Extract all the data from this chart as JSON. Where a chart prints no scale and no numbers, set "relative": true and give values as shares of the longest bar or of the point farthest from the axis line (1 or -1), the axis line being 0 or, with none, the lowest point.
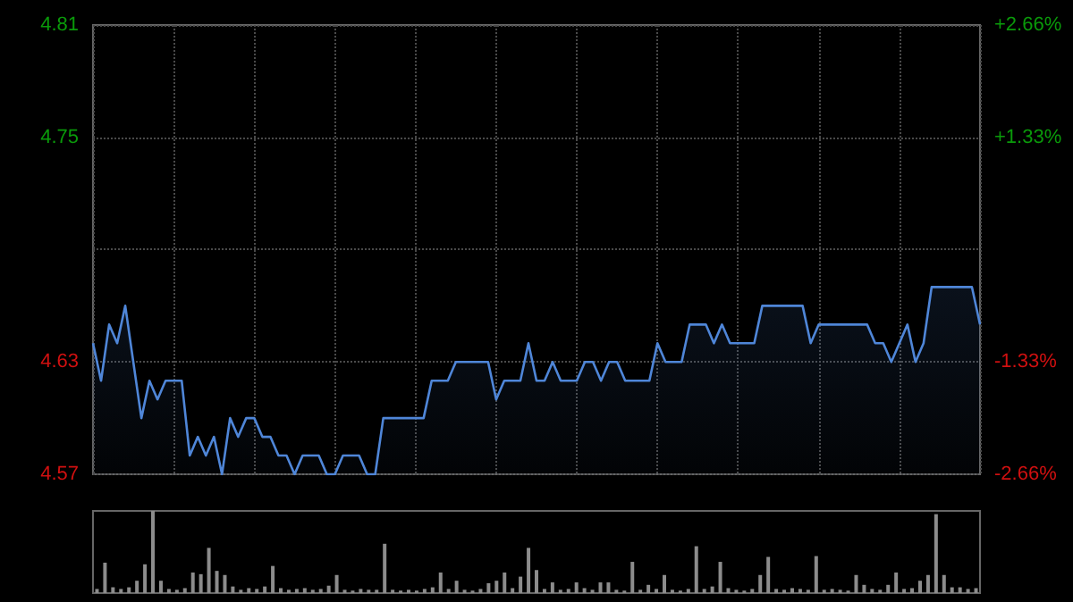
{
  "chart_data": [
    {
      "type": "area",
      "series": [
        {
          "color": "#4f86d8",
          "values": [
            4.64,
            4.62,
            4.65,
            4.64,
            4.66,
            4.63,
            4.6,
            4.62,
            4.61,
            4.62,
            4.62,
            4.62,
            4.58,
            4.59,
            4.58,
            4.59,
            4.57,
            4.6,
            4.59,
            4.6,
            4.6,
            4.59,
            4.59,
            4.58,
            4.58,
            4.57,
            4.58,
            4.58,
            4.58,
            4.57,
            4.57,
            4.58,
            4.58,
            4.58,
            4.57,
            4.57,
            4.6,
            4.6,
            4.6,
            4.6,
            4.6,
            4.6,
            4.62,
            4.62,
            4.62,
            4.63,
            4.63,
            4.63,
            4.63,
            4.63,
            4.61,
            4.62,
            4.62,
            4.62,
            4.64,
            4.62,
            4.62,
            4.63,
            4.62,
            4.62,
            4.62,
            4.63,
            4.63,
            4.62,
            4.63,
            4.63,
            4.62,
            4.62,
            4.62,
            4.62,
            4.64,
            4.63,
            4.63,
            4.63,
            4.65,
            4.65,
            4.65,
            4.64,
            4.65,
            4.64,
            4.64,
            4.64,
            4.64,
            4.66,
            4.66,
            4.66,
            4.66,
            4.66,
            4.66,
            4.64,
            4.65,
            4.65,
            4.65,
            4.65,
            4.65,
            4.65,
            4.65,
            4.64,
            4.64,
            4.63,
            4.64,
            4.65,
            4.63,
            4.64,
            4.67,
            4.67,
            4.67,
            4.67,
            4.67,
            4.67,
            4.65
          ]
        }
      ],
      "categories": [
        null,
        null,
        null,
        null,
        null,
        null,
        null,
        null,
        null,
        null,
        null,
        null,
        null,
        null,
        null,
        null,
        null,
        null,
        null,
        null,
        null,
        null,
        null,
        null,
        null,
        null,
        null,
        null,
        null,
        null,
        null,
        null,
        null,
        null,
        null,
        null,
        null,
        null,
        null,
        null,
        null,
        null,
        null,
        null,
        null,
        null,
        null,
        null,
        null,
        null,
        null,
        null,
        null,
        null,
        null,
        null,
        null,
        null,
        null,
        null,
        null,
        null,
        null,
        null,
        null,
        null,
        null,
        null,
        null,
        null,
        null,
        null,
        null,
        null,
        null,
        null,
        null,
        null,
        null,
        null,
        null,
        null,
        null,
        null,
        null,
        null,
        null,
        null,
        null,
        null,
        null,
        null,
        null,
        null,
        null,
        null,
        null,
        null,
        null,
        null,
        null,
        null,
        null,
        null,
        null,
        null,
        null,
        null,
        null,
        null,
        null
      ],
      "ylim": [
        4.57,
        4.81
      ],
      "yticks": [
        4.57,
        4.63,
        {
          "value": 4.69,
          "label": null
        },
        4.75,
        4.81
      ],
      "y2lim": [
        -2.66,
        2.66
      ],
      "y2ticks": [
        {
          "value": -2.66,
          "label": "-2.66%"
        },
        {
          "value": -1.33,
          "label": "-1.33%"
        },
        {
          "value": 0,
          "label": null
        },
        {
          "value": 1.33,
          "label": "+1.33%"
        },
        {
          "value": 2.66,
          "label": "+2.66%"
        }
      ],
      "tick_labels": "y",
      "grid": true,
      "line_style": "solid"
    },
    {
      "type": "bar",
      "relative": true,
      "tick_labels": false,
      "categories": [
        null,
        null,
        null,
        null,
        null,
        null,
        null,
        null,
        null,
        null,
        null,
        null,
        null,
        null,
        null,
        null,
        null,
        null,
        null,
        null,
        null,
        null,
        null,
        null,
        null,
        null,
        null,
        null,
        null,
        null,
        null,
        null,
        null,
        null,
        null,
        null,
        null,
        null,
        null,
        null,
        null,
        null,
        null,
        null,
        null,
        null,
        null,
        null,
        null,
        null,
        null,
        null,
        null,
        null,
        null,
        null,
        null,
        null,
        null,
        null,
        null,
        null,
        null,
        null,
        null,
        null,
        null,
        null,
        null,
        null,
        null,
        null,
        null,
        null,
        null,
        null,
        null,
        null,
        null,
        null,
        null,
        null,
        null,
        null,
        null,
        null,
        null,
        null,
        null,
        null,
        null,
        null,
        null,
        null,
        null,
        null,
        null,
        null,
        null,
        null,
        null,
        null,
        null,
        null,
        null,
        null,
        null,
        null,
        null,
        null,
        null
      ],
      "series": [
        {
          "color": "#8c8c8c",
          "values": [
            0.05,
            0.37,
            0.07,
            0.05,
            0.07,
            0.15,
            0.35,
            1,
            0.15,
            0.05,
            0.04,
            0.06,
            0.25,
            0.23,
            0.55,
            0.27,
            0.22,
            0.08,
            0.04,
            0.06,
            0.05,
            0.08,
            0.33,
            0.06,
            0.04,
            0.05,
            0.06,
            0.04,
            0.05,
            0.09,
            0.22,
            0.04,
            0.03,
            0.05,
            0.04,
            0.04,
            0.6,
            0.04,
            0.03,
            0.04,
            0.03,
            0.05,
            0.07,
            0.25,
            0.05,
            0.15,
            0.04,
            0.03,
            0.05,
            0.12,
            0.15,
            0.25,
            0.06,
            0.2,
            0.55,
            0.28,
            0.05,
            0.13,
            0.04,
            0.05,
            0.13,
            0.06,
            0.04,
            0.13,
            0.13,
            0.04,
            0.03,
            0.38,
            0.04,
            0.1,
            0.05,
            0.22,
            0.04,
            0.03,
            0.05,
            0.57,
            0.05,
            0.08,
            0.38,
            0.06,
            0.04,
            0.03,
            0.05,
            0.22,
            0.44,
            0.05,
            0.04,
            0.06,
            0.05,
            0.04,
            0.45,
            0.04,
            0.05,
            0.04,
            0.03,
            0.22,
            0.1,
            0.05,
            0.04,
            0.1,
            0.25,
            0.05,
            0.06,
            0.15,
            0.22,
            0.96,
            0.22,
            0.07,
            0.07,
            0.05,
            0.06
          ]
        }
      ]
    }
  ]
}
